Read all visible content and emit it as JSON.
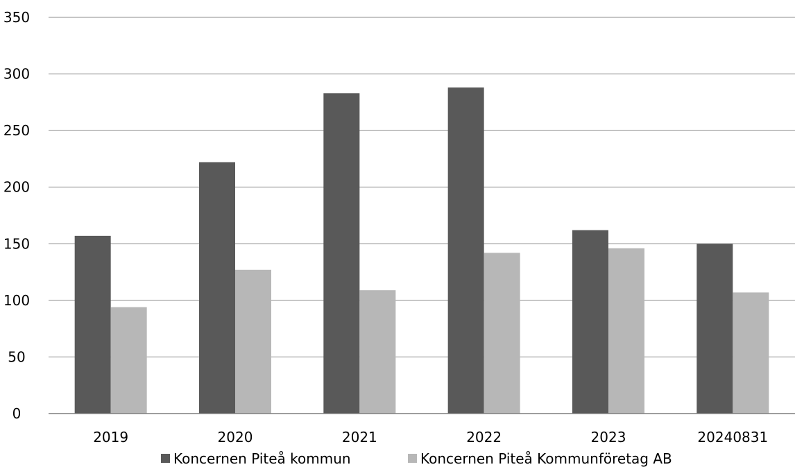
{
  "chart_data": {
    "type": "bar",
    "title": "",
    "xlabel": "",
    "ylabel": "",
    "categories": [
      "2019",
      "2020",
      "2021",
      "2022",
      "2023",
      "20240831"
    ],
    "series": [
      {
        "name": "Koncernen Piteå kommun",
        "color": "#595959",
        "values": [
          157,
          222,
          283,
          288,
          162,
          150
        ]
      },
      {
        "name": "Koncernen Piteå Kommunföretag AB",
        "color": "#b7b7b7",
        "values": [
          94,
          127,
          109,
          142,
          146,
          107
        ]
      }
    ],
    "ylim": [
      0,
      350
    ],
    "yticks": [
      0,
      50,
      100,
      150,
      200,
      250,
      300,
      350
    ],
    "grid": true,
    "legend_position": "bottom"
  }
}
